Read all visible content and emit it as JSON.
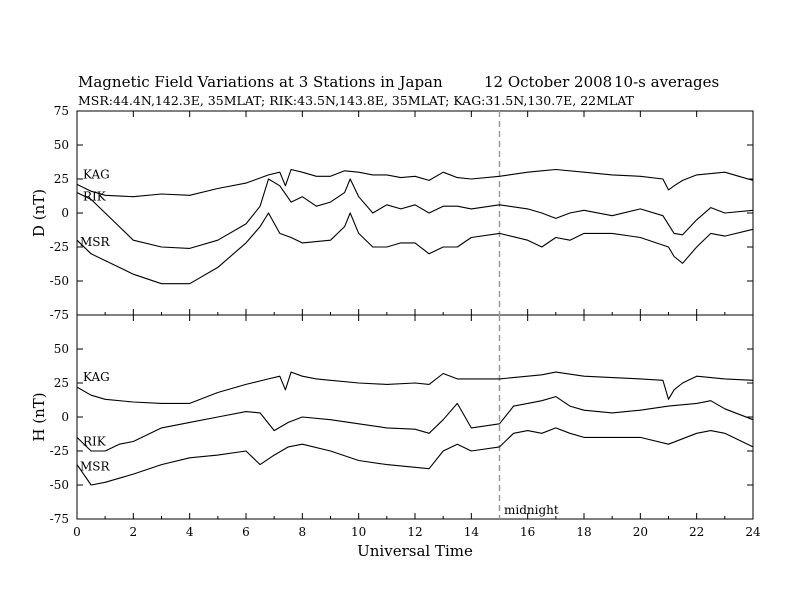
{
  "title_main": "Magnetic Field Variations at 3 Stations in Japan",
  "title_date": "12 October 2008",
  "title_avg": "10-s averages",
  "subtitle": "MSR:44.4N,142.3E, 35MLAT;  RIK:43.5N,143.8E, 35MLAT;  KAG:31.5N,130.7E, 22MLAT",
  "xlabel": "Universal Time",
  "marker_label": "midnight",
  "colors": {
    "line": "#000000",
    "marker": "#999999",
    "background": "#ffffff"
  },
  "chart_data": [
    {
      "type": "line",
      "panel": "D",
      "ylabel": "D (nT)",
      "xlim": [
        0,
        24
      ],
      "ylim": [
        -75,
        75
      ],
      "x_ticks": [
        0,
        2,
        4,
        6,
        8,
        10,
        12,
        14,
        16,
        18,
        20,
        22,
        24
      ],
      "x_tick_labels": [
        "0",
        "2",
        "4",
        "6",
        "8",
        "10",
        "12",
        "14",
        "16",
        "18",
        "20",
        "22",
        "24"
      ],
      "y_ticks": [
        75,
        50,
        25,
        0,
        -25,
        -50,
        -75
      ],
      "y_tick_labels": [
        "75",
        "50",
        "25",
        "0",
        "-25",
        "-50",
        "-75"
      ],
      "vline_x": 15,
      "series": [
        {
          "name": "KAG",
          "x": [
            0,
            0.5,
            1,
            2,
            3,
            4,
            5,
            6,
            6.8,
            7.2,
            7.4,
            7.6,
            8,
            8.5,
            9,
            9.5,
            10,
            10.5,
            11,
            11.5,
            12,
            12.5,
            13,
            13.5,
            14,
            15,
            16,
            16.5,
            17,
            18,
            19,
            20,
            20.8,
            21,
            21.2,
            21.5,
            22,
            23,
            23.5,
            24
          ],
          "y": [
            21,
            16,
            13,
            12,
            14,
            13,
            18,
            22,
            28,
            30,
            20,
            32,
            30,
            27,
            27,
            31,
            30,
            28,
            28,
            26,
            27,
            24,
            30,
            26,
            25,
            27,
            30,
            31,
            32,
            30,
            28,
            27,
            25,
            17,
            20,
            24,
            28,
            30,
            27,
            24
          ]
        },
        {
          "name": "RIK",
          "x": [
            0,
            0.5,
            1,
            1.5,
            2,
            3,
            4,
            5,
            6,
            6.5,
            6.8,
            7.2,
            7.6,
            8,
            8.5,
            9,
            9.5,
            9.7,
            10,
            10.5,
            11,
            11.5,
            12,
            12.5,
            13,
            13.5,
            14,
            15,
            16,
            16.5,
            17,
            17.5,
            18,
            19,
            20,
            20.8,
            21.2,
            21.5,
            22,
            22.5,
            23,
            24
          ],
          "y": [
            15,
            10,
            0,
            -10,
            -20,
            -25,
            -26,
            -20,
            -8,
            5,
            25,
            20,
            8,
            12,
            5,
            8,
            15,
            25,
            12,
            0,
            6,
            3,
            6,
            0,
            5,
            5,
            3,
            6,
            3,
            0,
            -4,
            0,
            2,
            -2,
            3,
            -2,
            -15,
            -16,
            -5,
            4,
            0,
            2
          ]
        },
        {
          "name": "MSR",
          "x": [
            0,
            0.5,
            1,
            1.5,
            2,
            3,
            4,
            5,
            6,
            6.5,
            6.8,
            7.2,
            7.6,
            8,
            9,
            9.5,
            9.7,
            10,
            10.5,
            11,
            11.5,
            12,
            12.5,
            13,
            13.5,
            14,
            15,
            16,
            16.5,
            17,
            17.5,
            18,
            19,
            20,
            21,
            21.2,
            21.5,
            22,
            22.5,
            23,
            24
          ],
          "y": [
            -20,
            -30,
            -35,
            -40,
            -45,
            -52,
            -52,
            -40,
            -22,
            -10,
            0,
            -15,
            -18,
            -22,
            -20,
            -10,
            0,
            -15,
            -25,
            -25,
            -22,
            -22,
            -30,
            -25,
            -25,
            -18,
            -15,
            -20,
            -25,
            -18,
            -20,
            -15,
            -15,
            -18,
            -25,
            -32,
            -37,
            -25,
            -15,
            -17,
            -12
          ]
        }
      ]
    },
    {
      "type": "line",
      "panel": "H",
      "ylabel": "H (nT)",
      "xlabel": "Universal Time",
      "xlim": [
        0,
        24
      ],
      "ylim": [
        -75,
        75
      ],
      "x_ticks": [
        0,
        2,
        4,
        6,
        8,
        10,
        12,
        14,
        16,
        18,
        20,
        22,
        24
      ],
      "x_tick_labels": [
        "0",
        "2",
        "4",
        "6",
        "8",
        "10",
        "12",
        "14",
        "16",
        "18",
        "20",
        "22",
        "24"
      ],
      "y_ticks": [
        75,
        50,
        25,
        0,
        -25,
        -50,
        -75
      ],
      "y_tick_labels": [
        "75",
        "50",
        "25",
        "0",
        "-25",
        "-50",
        "-75"
      ],
      "vline_x": 15,
      "series": [
        {
          "name": "KAG",
          "x": [
            0,
            0.5,
            1,
            2,
            3,
            4,
            5,
            6,
            6.8,
            7.2,
            7.4,
            7.6,
            8,
            8.5,
            9,
            10,
            11,
            12,
            12.5,
            13,
            13.5,
            14,
            15,
            16,
            16.5,
            17,
            18,
            19,
            20,
            20.8,
            21,
            21.2,
            21.5,
            22,
            23,
            24
          ],
          "y": [
            22,
            16,
            13,
            11,
            10,
            10,
            18,
            24,
            28,
            30,
            20,
            33,
            30,
            28,
            27,
            25,
            24,
            25,
            24,
            32,
            28,
            28,
            28,
            30,
            31,
            33,
            30,
            29,
            28,
            27,
            13,
            20,
            25,
            30,
            28,
            27
          ]
        },
        {
          "name": "RIK",
          "x": [
            0,
            0.5,
            1,
            1.5,
            2,
            3,
            4,
            5,
            6,
            6.5,
            7,
            7.5,
            8,
            9,
            10,
            11,
            12,
            12.5,
            13,
            13.5,
            14,
            15,
            15.5,
            16,
            16.5,
            17,
            17.5,
            18,
            19,
            20,
            21,
            22,
            22.5,
            23,
            24
          ],
          "y": [
            -15,
            -25,
            -25,
            -20,
            -18,
            -8,
            -4,
            0,
            4,
            3,
            -10,
            -4,
            0,
            -2,
            -5,
            -8,
            -9,
            -12,
            -2,
            10,
            -8,
            -5,
            8,
            10,
            12,
            15,
            8,
            5,
            3,
            5,
            8,
            10,
            12,
            6,
            -2
          ]
        },
        {
          "name": "MSR",
          "x": [
            0,
            0.5,
            1,
            1.5,
            2,
            3,
            4,
            5,
            6,
            6.5,
            7,
            7.5,
            8,
            9,
            10,
            11,
            12,
            12.5,
            13,
            13.5,
            14,
            15,
            15.5,
            16,
            16.5,
            17,
            17.5,
            18,
            19,
            20,
            21,
            22,
            22.5,
            23,
            24
          ],
          "y": [
            -35,
            -50,
            -48,
            -45,
            -42,
            -35,
            -30,
            -28,
            -25,
            -35,
            -28,
            -22,
            -20,
            -25,
            -32,
            -35,
            -37,
            -38,
            -25,
            -20,
            -25,
            -22,
            -12,
            -10,
            -12,
            -8,
            -12,
            -15,
            -15,
            -15,
            -20,
            -12,
            -10,
            -12,
            -22
          ]
        }
      ]
    }
  ]
}
